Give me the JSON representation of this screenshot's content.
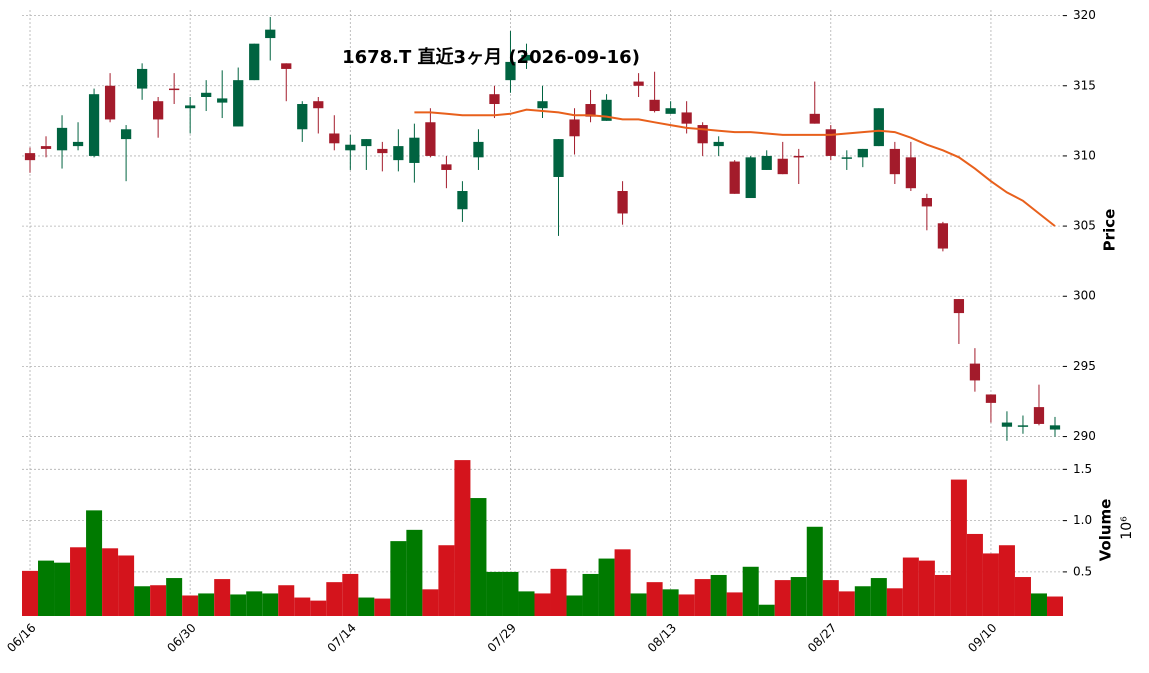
{
  "chart_data": {
    "type": "candlestick",
    "title": "1678.T  直近3ヶ月 (2026-09-16)",
    "y_label": "Price",
    "volume_label": "Volume",
    "volume_scale_label": "10⁶",
    "categories": [
      "06/16",
      null,
      null,
      null,
      null,
      null,
      null,
      null,
      null,
      null,
      "06/30",
      null,
      null,
      null,
      null,
      null,
      null,
      null,
      null,
      null,
      "07/14",
      null,
      null,
      null,
      null,
      null,
      null,
      null,
      null,
      null,
      "07/29",
      null,
      null,
      null,
      null,
      null,
      null,
      null,
      null,
      null,
      "08/13",
      null,
      null,
      null,
      null,
      null,
      null,
      null,
      null,
      null,
      "08/27",
      null,
      null,
      null,
      null,
      null,
      null,
      null,
      null,
      null,
      "09/10",
      null,
      null,
      null,
      null
    ],
    "open": [
      310.2,
      310.7,
      310.4,
      310.7,
      310.0,
      315.0,
      311.2,
      314.8,
      313.9,
      314.8,
      313.4,
      314.2,
      313.8,
      312.1,
      315.4,
      318.4,
      316.6,
      311.9,
      313.9,
      311.6,
      310.4,
      310.7,
      310.5,
      309.7,
      309.5,
      312.4,
      309.4,
      306.2,
      309.9,
      314.4,
      315.4,
      316.8,
      313.4,
      308.5,
      312.6,
      313.7,
      312.5,
      307.5,
      315.3,
      314.0,
      313.0,
      313.1,
      312.2,
      310.7,
      309.6,
      307.0,
      309.0,
      309.8,
      310.0,
      313.0,
      311.9,
      309.8,
      309.9,
      310.7,
      310.5,
      309.9,
      307.0,
      305.2,
      299.8,
      295.2,
      293.0,
      290.7,
      290.7,
      292.1,
      290.5
    ],
    "high": [
      310.6,
      311.4,
      312.9,
      312.4,
      314.8,
      315.9,
      312.2,
      316.6,
      314.2,
      315.9,
      314.2,
      315.4,
      316.1,
      316.3,
      318.0,
      319.9,
      316.6,
      313.9,
      314.2,
      312.9,
      311.5,
      311.2,
      311.0,
      311.9,
      312.3,
      313.4,
      310.0,
      308.2,
      311.9,
      315.0,
      318.9,
      318.0,
      315.0,
      311.2,
      313.4,
      314.7,
      314.4,
      308.2,
      315.9,
      316.0,
      313.9,
      313.9,
      312.4,
      311.4,
      309.7,
      310.0,
      310.4,
      311.0,
      310.5,
      315.3,
      312.2,
      310.4,
      310.5,
      313.4,
      311.0,
      311.0,
      307.3,
      305.3,
      299.8,
      296.3,
      293.0,
      291.8,
      291.5,
      293.7,
      291.4
    ],
    "low": [
      308.8,
      309.9,
      309.1,
      310.4,
      309.9,
      312.4,
      308.2,
      314.0,
      311.3,
      313.7,
      311.6,
      313.2,
      312.7,
      312.1,
      315.4,
      316.8,
      313.9,
      311.0,
      311.6,
      310.4,
      309.0,
      309.0,
      308.9,
      308.9,
      308.1,
      309.9,
      307.7,
      305.3,
      309.0,
      312.7,
      314.5,
      316.2,
      312.7,
      304.3,
      310.1,
      312.4,
      312.5,
      305.1,
      314.2,
      313.1,
      313.0,
      311.6,
      310.0,
      310.0,
      307.3,
      307.0,
      309.0,
      308.7,
      308.0,
      312.3,
      309.7,
      309.0,
      309.2,
      310.7,
      308.0,
      307.5,
      304.7,
      303.2,
      296.6,
      293.2,
      291.0,
      289.7,
      290.2,
      290.8,
      290.0
    ],
    "close": [
      309.7,
      310.5,
      312.0,
      311.0,
      314.4,
      312.6,
      311.9,
      316.2,
      312.6,
      314.7,
      313.6,
      314.5,
      314.1,
      315.4,
      318.0,
      319.0,
      316.2,
      313.7,
      313.4,
      310.9,
      310.8,
      311.2,
      310.2,
      310.7,
      311.3,
      310.0,
      309.0,
      307.5,
      311.0,
      313.7,
      316.7,
      317.2,
      313.9,
      311.2,
      311.4,
      312.8,
      314.0,
      305.9,
      315.0,
      313.2,
      313.4,
      312.3,
      310.9,
      311.0,
      307.3,
      309.9,
      310.0,
      308.7,
      309.9,
      312.3,
      310.0,
      309.9,
      310.5,
      313.4,
      308.7,
      307.7,
      306.4,
      303.4,
      298.8,
      294.0,
      292.4,
      291.0,
      290.8,
      290.9,
      290.8
    ],
    "volume": [
      0.51,
      0.61,
      0.59,
      0.74,
      1.1,
      0.73,
      0.66,
      0.36,
      0.37,
      0.44,
      0.27,
      0.29,
      0.43,
      0.28,
      0.31,
      0.29,
      0.37,
      0.25,
      0.22,
      0.4,
      0.48,
      0.25,
      0.24,
      0.8,
      0.91,
      0.33,
      0.76,
      1.59,
      1.22,
      0.5,
      0.5,
      0.31,
      0.29,
      0.53,
      0.27,
      0.48,
      0.63,
      0.72,
      0.29,
      0.4,
      0.33,
      0.28,
      0.43,
      0.47,
      0.3,
      0.55,
      0.18,
      0.42,
      0.45,
      0.94,
      0.42,
      0.31,
      0.36,
      0.44,
      0.34,
      0.64,
      0.61,
      0.47,
      1.4,
      0.87,
      0.68,
      0.76,
      0.45,
      0.29,
      0.26
    ],
    "ma": {
      "color": "#e8601c",
      "values": [
        null,
        null,
        null,
        null,
        null,
        null,
        null,
        null,
        null,
        null,
        null,
        null,
        null,
        null,
        null,
        null,
        null,
        null,
        null,
        null,
        null,
        null,
        null,
        null,
        313.1,
        313.1,
        313.0,
        312.9,
        312.9,
        312.9,
        313.0,
        313.3,
        313.2,
        313.1,
        312.9,
        312.9,
        312.8,
        312.6,
        312.6,
        312.4,
        312.2,
        312.0,
        311.9,
        311.8,
        311.7,
        311.7,
        311.6,
        311.5,
        311.5,
        311.5,
        311.5,
        311.6,
        311.7,
        311.8,
        311.7,
        311.3,
        310.8,
        310.4,
        309.9,
        309.1,
        308.2,
        307.4,
        306.8,
        305.9,
        305.0
      ]
    },
    "up_color": "#006340",
    "down_color": "#a31b2b",
    "volume_up_color": "#007a00",
    "volume_down_color": "#d4141c",
    "ylim": [
      288.9,
      320.4
    ],
    "yticks": [
      290,
      295,
      300,
      305,
      310,
      315,
      320
    ],
    "volume_ylim": [
      0.07,
      1.63
    ],
    "volume_yticks": [
      0.5,
      {
        "value": 1,
        "label": "1.0"
      },
      1.5
    ],
    "grid": true
  }
}
